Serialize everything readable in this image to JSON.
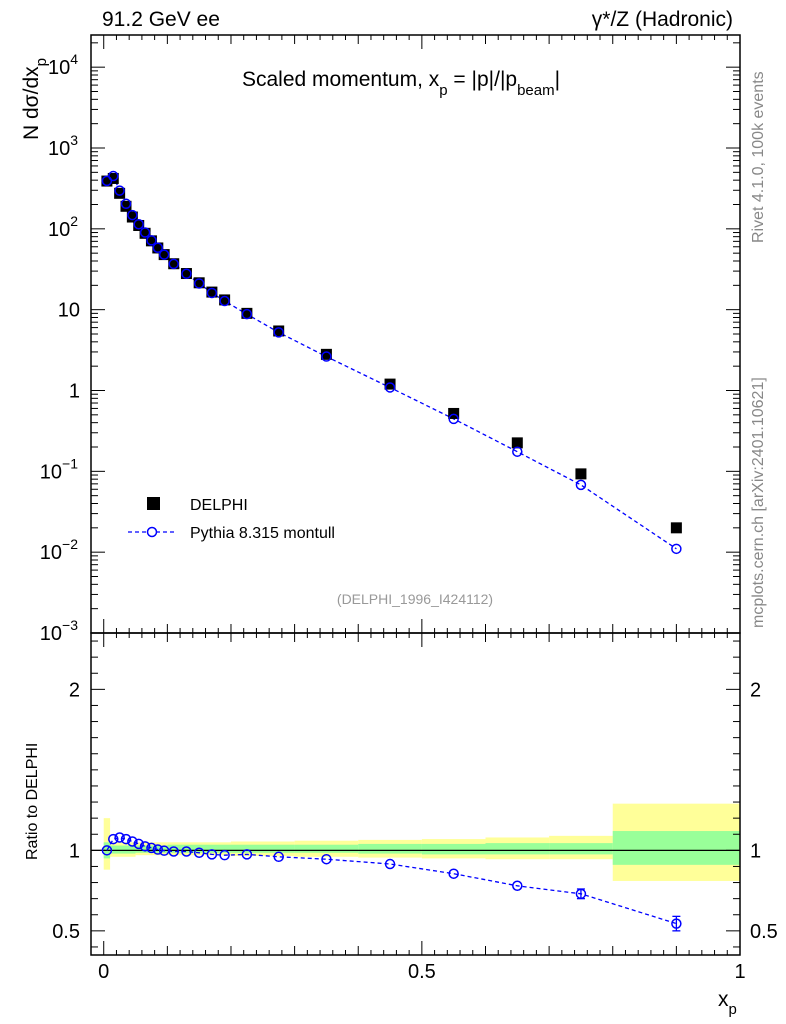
{
  "header": {
    "left": "91.2 GeV ee",
    "right": "γ*/Z (Hadronic)"
  },
  "side": {
    "rivet": "Rivet 4.1.0,  100k events",
    "mcplots": "mcplots.cern.ch [arXiv:2401.10621]"
  },
  "chart_data": [
    {
      "type": "scatter",
      "title": "Scaled momentum, x_p = |p|/|p_beam|",
      "title_parts": {
        "main": "Scaled momentum, x",
        "sub1": "p",
        "mid": " = |p|/|p",
        "sub2": "beam",
        "end": "|"
      },
      "ylabel": "N  dσ/dx_p",
      "ylabel_parts": {
        "main": "N  dσ/dx",
        "sub": "p"
      },
      "yscale": "log",
      "ylim": [
        0.001,
        25000
      ],
      "xlim": [
        -0.02,
        1.0
      ],
      "y_ticks": [
        {
          "v": 10000,
          "label": "10",
          "exp": "4"
        },
        {
          "v": 1000,
          "label": "10",
          "exp": "3"
        },
        {
          "v": 100,
          "label": "10",
          "exp": "2"
        },
        {
          "v": 10,
          "label": "10",
          "exp": ""
        },
        {
          "v": 1,
          "label": "1",
          "exp": ""
        },
        {
          "v": 0.1,
          "label": "10",
          "exp": "−1"
        },
        {
          "v": 0.01,
          "label": "10",
          "exp": "−2"
        },
        {
          "v": 0.001,
          "label": "10",
          "exp": "−3"
        }
      ],
      "watermark": "(DELPHI_1996_I424112)",
      "legend": {
        "position": "lower-left",
        "entries": [
          "DELPHI",
          "Pythia 8.315 montull"
        ]
      },
      "series": [
        {
          "name": "DELPHI",
          "marker": "filled-square",
          "color": "#000000",
          "x": [
            0.005,
            0.015,
            0.025,
            0.035,
            0.045,
            0.055,
            0.065,
            0.075,
            0.085,
            0.095,
            0.11,
            0.13,
            0.15,
            0.17,
            0.19,
            0.225,
            0.275,
            0.35,
            0.45,
            0.55,
            0.65,
            0.75,
            0.9
          ],
          "y": [
            390,
            420,
            275,
            190,
            140,
            110,
            88,
            71,
            58,
            48,
            37,
            28,
            21.5,
            16.5,
            13.2,
            9.0,
            5.45,
            2.8,
            1.2,
            0.52,
            0.225,
            0.093,
            0.02
          ]
        },
        {
          "name": "Pythia 8.315 montull",
          "marker": "open-circle",
          "linestyle": "dashed",
          "color": "#0000ff",
          "x": [
            0.005,
            0.015,
            0.025,
            0.035,
            0.045,
            0.055,
            0.065,
            0.075,
            0.085,
            0.095,
            0.11,
            0.13,
            0.15,
            0.17,
            0.19,
            0.225,
            0.275,
            0.35,
            0.45,
            0.55,
            0.65,
            0.75,
            0.9
          ],
          "y": [
            392,
            450,
            297,
            204,
            148,
            114,
            90,
            72,
            58.3,
            48,
            36.8,
            27.8,
            21.1,
            16.1,
            12.8,
            8.8,
            5.24,
            2.63,
            1.09,
            0.445,
            0.175,
            0.068,
            0.011
          ]
        }
      ]
    },
    {
      "type": "scatter",
      "ylabel": "Ratio to DELPHI",
      "xlabel": "x_p",
      "xlabel_parts": {
        "main": "x",
        "sub": "p"
      },
      "ylim": [
        0.35,
        2.35
      ],
      "xlim": [
        -0.02,
        1.0
      ],
      "y_ticks": [
        0.5,
        1,
        2
      ],
      "x_ticks": [
        0,
        0.5,
        1
      ],
      "x_tick_labels": [
        "0",
        "0.5",
        "1"
      ],
      "y_tick_labels": [
        "0.5",
        "1",
        "2"
      ],
      "reference_line": 1,
      "uncertainty_bands": [
        {
          "x0": 0.0,
          "x1": 0.01,
          "inner": [
            0.95,
            1.05
          ],
          "outer": [
            0.88,
            1.2
          ]
        },
        {
          "x0": 0.01,
          "x1": 0.05,
          "inner": [
            0.98,
            1.03
          ],
          "outer": [
            0.96,
            1.05
          ]
        },
        {
          "x0": 0.05,
          "x1": 0.1,
          "inner": [
            0.985,
            1.03
          ],
          "outer": [
            0.97,
            1.05
          ]
        },
        {
          "x0": 0.1,
          "x1": 0.2,
          "inner": [
            0.985,
            1.035
          ],
          "outer": [
            0.97,
            1.05
          ]
        },
        {
          "x0": 0.2,
          "x1": 0.3,
          "inner": [
            0.985,
            1.035
          ],
          "outer": [
            0.965,
            1.055
          ]
        },
        {
          "x0": 0.3,
          "x1": 0.4,
          "inner": [
            0.985,
            1.035
          ],
          "outer": [
            0.96,
            1.06
          ]
        },
        {
          "x0": 0.4,
          "x1": 0.5,
          "inner": [
            0.98,
            1.04
          ],
          "outer": [
            0.955,
            1.065
          ]
        },
        {
          "x0": 0.5,
          "x1": 0.6,
          "inner": [
            0.975,
            1.04
          ],
          "outer": [
            0.95,
            1.07
          ]
        },
        {
          "x0": 0.6,
          "x1": 0.7,
          "inner": [
            0.975,
            1.045
          ],
          "outer": [
            0.945,
            1.08
          ]
        },
        {
          "x0": 0.7,
          "x1": 0.8,
          "inner": [
            0.975,
            1.045
          ],
          "outer": [
            0.945,
            1.09
          ]
        },
        {
          "x0": 0.8,
          "x1": 1.0,
          "inner": [
            0.91,
            1.12
          ],
          "outer": [
            0.81,
            1.29
          ]
        }
      ],
      "colors": {
        "inner_band": "#99ff99",
        "outer_band": "#ffff99",
        "mc": "#0000ff"
      },
      "series": [
        {
          "name": "Pythia 8.315 montull / DELPHI",
          "x": [
            0.005,
            0.015,
            0.025,
            0.035,
            0.045,
            0.055,
            0.065,
            0.075,
            0.085,
            0.095,
            0.11,
            0.13,
            0.15,
            0.17,
            0.19,
            0.225,
            0.275,
            0.35,
            0.45,
            0.55,
            0.65,
            0.75,
            0.9
          ],
          "y": [
            1.0,
            1.07,
            1.08,
            1.07,
            1.055,
            1.04,
            1.025,
            1.015,
            1.005,
            0.998,
            0.993,
            0.993,
            0.985,
            0.975,
            0.97,
            0.975,
            0.96,
            0.945,
            0.915,
            0.855,
            0.78,
            0.73,
            0.545
          ],
          "yerr": [
            0,
            0,
            0,
            0,
            0,
            0,
            0,
            0,
            0,
            0,
            0,
            0,
            0,
            0,
            0,
            0,
            0,
            0,
            0,
            0,
            0,
            0.03,
            0.045
          ]
        }
      ]
    }
  ]
}
